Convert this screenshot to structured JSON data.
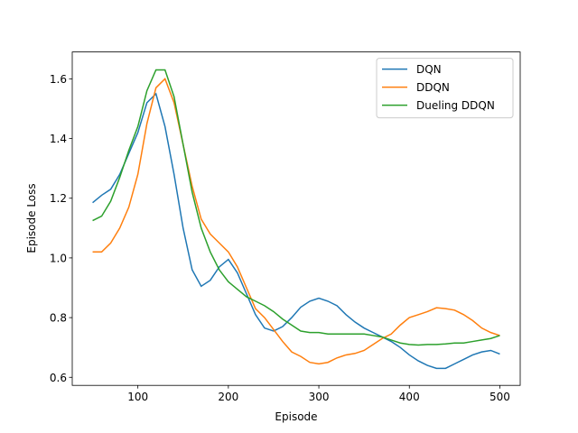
{
  "chart_data": {
    "type": "line",
    "x_label": "Episode",
    "y_label": "Episode Loss",
    "x": [
      50,
      60,
      70,
      80,
      90,
      100,
      110,
      120,
      130,
      140,
      150,
      160,
      170,
      180,
      190,
      200,
      210,
      220,
      230,
      240,
      250,
      260,
      270,
      280,
      290,
      300,
      310,
      320,
      330,
      340,
      350,
      360,
      370,
      380,
      390,
      400,
      410,
      420,
      430,
      440,
      450,
      460,
      470,
      480,
      490,
      500
    ],
    "series": [
      {
        "name": "DQN",
        "color": "#1f77b4",
        "values": [
          1.185,
          1.21,
          1.23,
          1.28,
          1.35,
          1.42,
          1.52,
          1.55,
          1.44,
          1.28,
          1.1,
          0.96,
          0.905,
          0.925,
          0.97,
          0.995,
          0.95,
          0.88,
          0.81,
          0.765,
          0.755,
          0.77,
          0.8,
          0.835,
          0.855,
          0.865,
          0.855,
          0.84,
          0.81,
          0.785,
          0.765,
          0.75,
          0.735,
          0.72,
          0.7,
          0.675,
          0.655,
          0.64,
          0.63,
          0.63,
          0.645,
          0.66,
          0.675,
          0.685,
          0.69,
          0.678
        ]
      },
      {
        "name": "DDQN",
        "color": "#ff7f0e",
        "values": [
          1.02,
          1.02,
          1.05,
          1.1,
          1.17,
          1.28,
          1.45,
          1.57,
          1.6,
          1.52,
          1.38,
          1.24,
          1.13,
          1.08,
          1.05,
          1.02,
          0.97,
          0.9,
          0.83,
          0.8,
          0.76,
          0.72,
          0.685,
          0.67,
          0.65,
          0.645,
          0.65,
          0.665,
          0.675,
          0.68,
          0.69,
          0.71,
          0.73,
          0.745,
          0.775,
          0.8,
          0.81,
          0.82,
          0.833,
          0.83,
          0.825,
          0.81,
          0.79,
          0.765,
          0.75,
          0.74
        ]
      },
      {
        "name": "Dueling DDQN",
        "color": "#2ca02c",
        "values": [
          1.125,
          1.14,
          1.19,
          1.27,
          1.36,
          1.44,
          1.56,
          1.63,
          1.63,
          1.54,
          1.38,
          1.22,
          1.1,
          1.02,
          0.96,
          0.92,
          0.895,
          0.87,
          0.855,
          0.84,
          0.82,
          0.795,
          0.775,
          0.755,
          0.75,
          0.75,
          0.745,
          0.745,
          0.745,
          0.745,
          0.745,
          0.74,
          0.735,
          0.725,
          0.715,
          0.71,
          0.708,
          0.71,
          0.71,
          0.712,
          0.715,
          0.715,
          0.72,
          0.725,
          0.73,
          0.74
        ]
      }
    ],
    "xlim": [
      27.5,
      522.5
    ],
    "ylim": [
      0.573,
      1.69
    ],
    "xticks": [
      100,
      200,
      300,
      400,
      500
    ],
    "yticks": [
      {
        "value": 0.6,
        "label": "0.6"
      },
      {
        "value": 0.8,
        "label": "0.8"
      },
      {
        "value": 1.0,
        "label": "1.0"
      },
      {
        "value": 1.2,
        "label": "1.2"
      },
      {
        "value": 1.4,
        "label": "1.4"
      },
      {
        "value": 1.6,
        "label": "1.6"
      }
    ],
    "legend": "upper right"
  }
}
